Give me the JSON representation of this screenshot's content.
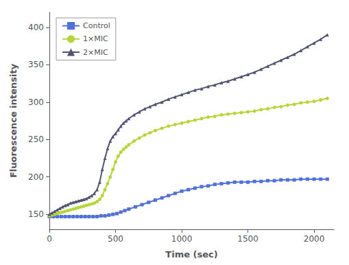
{
  "chart_data": {
    "type": "line",
    "xlabel": "Time (sec)",
    "ylabel": "Fluorescence intensity",
    "xlim": [
      0,
      2150
    ],
    "ylim": [
      130,
      420
    ],
    "xticks": [
      0,
      500,
      1000,
      1500,
      2000
    ],
    "yticks": [
      150,
      200,
      250,
      300,
      350,
      400
    ],
    "grid": false,
    "legend": "upper left",
    "series": [
      {
        "name": "Control",
        "marker": "square",
        "x": [
          0,
          30,
          60,
          90,
          120,
          150,
          180,
          210,
          240,
          270,
          300,
          330,
          360,
          390,
          420,
          450,
          480,
          510,
          540,
          570,
          600,
          650,
          700,
          750,
          800,
          850,
          900,
          950,
          1000,
          1050,
          1100,
          1150,
          1200,
          1250,
          1300,
          1350,
          1400,
          1450,
          1500,
          1550,
          1600,
          1650,
          1700,
          1750,
          1800,
          1850,
          1900,
          1950,
          2000,
          2050,
          2100
        ],
        "values": [
          147,
          147,
          147,
          147,
          147,
          147,
          147,
          147,
          147,
          147,
          147,
          147,
          147,
          148,
          148,
          149,
          150,
          151,
          153,
          155,
          157,
          160,
          163,
          166,
          169,
          172,
          175,
          178,
          181,
          183,
          185,
          187,
          188,
          190,
          191,
          192,
          193,
          193,
          193,
          194,
          194,
          195,
          195,
          196,
          196,
          196,
          197,
          197,
          197,
          197,
          197
        ]
      },
      {
        "name": "1×MIC",
        "marker": "circle",
        "x": [
          0,
          20,
          40,
          60,
          80,
          100,
          120,
          140,
          160,
          180,
          200,
          220,
          240,
          260,
          280,
          300,
          320,
          340,
          360,
          380,
          400,
          420,
          440,
          460,
          480,
          500,
          520,
          540,
          560,
          580,
          600,
          640,
          680,
          720,
          760,
          800,
          850,
          900,
          950,
          1000,
          1050,
          1100,
          1150,
          1200,
          1250,
          1300,
          1350,
          1400,
          1450,
          1500,
          1550,
          1600,
          1650,
          1700,
          1750,
          1800,
          1850,
          1900,
          1950,
          2000,
          2050,
          2100
        ],
        "values": [
          148,
          149,
          150,
          151,
          152,
          153,
          154,
          155,
          156,
          157,
          158,
          159,
          160,
          161,
          162,
          163,
          164,
          165,
          167,
          170,
          175,
          183,
          191,
          200,
          210,
          220,
          228,
          233,
          237,
          240,
          243,
          248,
          252,
          256,
          259,
          262,
          265,
          268,
          270,
          272,
          274,
          276,
          278,
          280,
          281,
          283,
          284,
          285,
          286,
          287,
          288,
          290,
          291,
          293,
          294,
          296,
          297,
          299,
          300,
          301,
          303,
          305
        ]
      },
      {
        "name": "2×MIC",
        "marker": "triangle",
        "x": [
          0,
          20,
          40,
          60,
          80,
          100,
          120,
          140,
          160,
          180,
          200,
          220,
          240,
          260,
          280,
          300,
          320,
          340,
          360,
          380,
          400,
          420,
          440,
          460,
          480,
          500,
          520,
          540,
          560,
          580,
          600,
          640,
          680,
          720,
          760,
          800,
          850,
          900,
          950,
          1000,
          1050,
          1100,
          1150,
          1200,
          1250,
          1300,
          1350,
          1400,
          1450,
          1500,
          1550,
          1600,
          1650,
          1700,
          1750,
          1800,
          1850,
          1900,
          1950,
          2000,
          2050,
          2100
        ],
        "values": [
          150,
          152,
          154,
          156,
          158,
          160,
          162,
          163,
          165,
          166,
          167,
          168,
          169,
          170,
          171,
          173,
          175,
          178,
          183,
          193,
          210,
          225,
          238,
          248,
          254,
          258,
          263,
          268,
          272,
          275,
          278,
          283,
          287,
          291,
          294,
          297,
          300,
          304,
          307,
          310,
          313,
          316,
          318,
          321,
          323,
          326,
          328,
          331,
          334,
          337,
          340,
          344,
          348,
          352,
          356,
          360,
          364,
          369,
          374,
          379,
          384,
          390
        ]
      }
    ]
  }
}
